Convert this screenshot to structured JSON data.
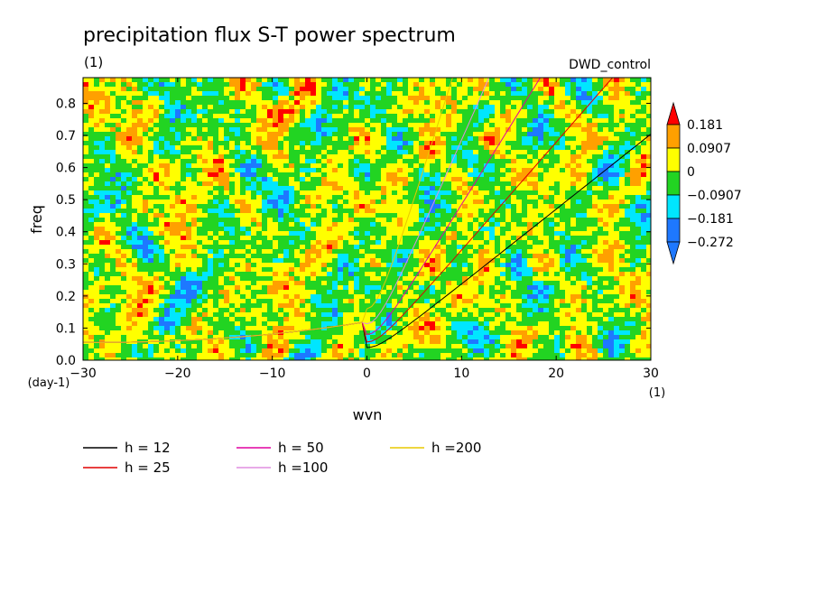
{
  "chart_data": {
    "type": "heatmap",
    "title": "precipitation flux S-T power spectrum",
    "subtitle": "(1)",
    "dataset_label": "DWD_control",
    "xlabel": "wvn",
    "ylabel": "freq",
    "x_unit": "(1)",
    "y_unit": "(day-1)",
    "xlim": [
      -30,
      30
    ],
    "ylim": [
      0,
      0.88
    ],
    "x_ticks": [
      -30,
      -20,
      -10,
      0,
      10,
      20,
      30
    ],
    "x_tick_labels": [
      "−30",
      "−20",
      "−10",
      "0",
      "10",
      "20",
      "30"
    ],
    "y_ticks": [
      0,
      0.1,
      0.2,
      0.3,
      0.4,
      0.5,
      0.6,
      0.7,
      0.8
    ],
    "y_tick_labels": [
      "0.0",
      "0.1",
      "0.2",
      "0.3",
      "0.4",
      "0.5",
      "0.6",
      "0.7",
      "0.8"
    ],
    "colorbar": {
      "levels": [
        -0.272,
        -0.181,
        -0.0907,
        0,
        0.0907,
        0.181
      ],
      "level_labels": [
        "−0.272",
        "−0.181",
        "−0.0907",
        "0",
        "0.0907",
        "0.181"
      ],
      "colors": [
        "#1e78ff",
        "#00e6ff",
        "#22d422",
        "#ffff00",
        "#ffa000",
        "#ff0000"
      ]
    },
    "series": [
      {
        "name": "h = 12",
        "h": 12,
        "color": "#000000"
      },
      {
        "name": "h = 25",
        "h": 25,
        "color": "#e00000"
      },
      {
        "name": "h = 50",
        "h": 50,
        "color": "#e000a0"
      },
      {
        "name": "h =100",
        "h": 100,
        "color": "#e08ee0"
      },
      {
        "name": "h =200",
        "h": 200,
        "color": "#e8c800"
      }
    ]
  }
}
